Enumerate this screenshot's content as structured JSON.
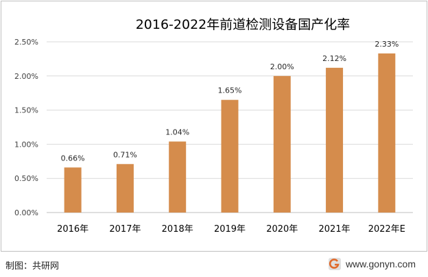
{
  "chart_data": {
    "type": "bar",
    "title": "2016-2022年前道检测设备国产化率",
    "categories": [
      "2016年",
      "2017年",
      "2018年",
      "2019年",
      "2020年",
      "2021年",
      "2022年E"
    ],
    "values": [
      0.66,
      0.71,
      1.04,
      1.65,
      2.0,
      2.12,
      2.33
    ],
    "value_labels": [
      "0.66%",
      "0.71%",
      "1.04%",
      "1.65%",
      "2.00%",
      "2.12%",
      "2.33%"
    ],
    "y_ticks": [
      0,
      0.5,
      1.0,
      1.5,
      2.0,
      2.5
    ],
    "y_tick_labels": [
      "0.00%",
      "0.50%",
      "1.00%",
      "1.50%",
      "2.00%",
      "2.50%"
    ],
    "ylim": [
      0,
      2.5
    ],
    "xlabel": "",
    "ylabel": "",
    "grid": true,
    "bar_color": "#D58C4C"
  },
  "footer": {
    "source": "制图：共研网",
    "brand": "www.gonyn.com",
    "logo_icon": "gonyn-logo-icon"
  }
}
